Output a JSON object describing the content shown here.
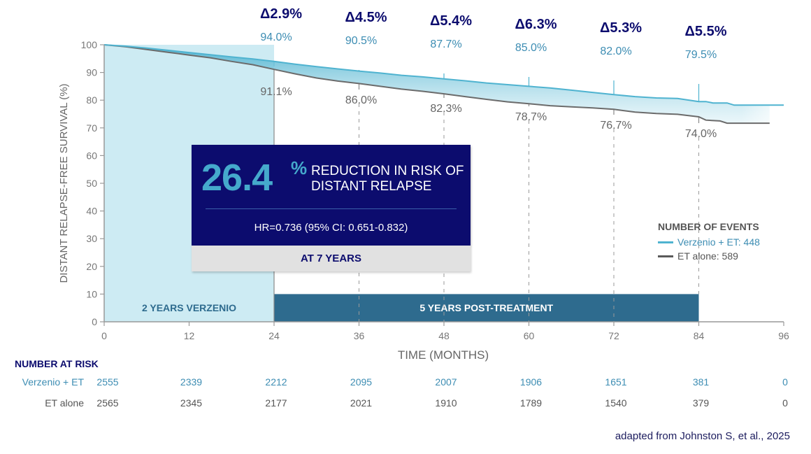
{
  "chart_data": {
    "type": "line",
    "title": "",
    "xlabel": "TIME (MONTHS)",
    "ylabel": "DISTANT RELAPSE-FREE SURVIVAL (%)",
    "xlim": [
      0,
      96
    ],
    "ylim": [
      0,
      100
    ],
    "x_ticks": [
      0,
      12,
      24,
      36,
      48,
      60,
      72,
      84,
      96
    ],
    "y_ticks": [
      0,
      10,
      20,
      30,
      40,
      50,
      60,
      70,
      80,
      90,
      100
    ],
    "grid": false,
    "series": [
      {
        "name": "Verzenio + ET",
        "color": "#4fb3d0",
        "points": [
          [
            0,
            100
          ],
          [
            3,
            99.5
          ],
          [
            6,
            98.8
          ],
          [
            9,
            98.0
          ],
          [
            12,
            97.2
          ],
          [
            15,
            96.4
          ],
          [
            18,
            95.6
          ],
          [
            21,
            94.9
          ],
          [
            24,
            94.0
          ],
          [
            27,
            93.0
          ],
          [
            30,
            92.1
          ],
          [
            33,
            91.3
          ],
          [
            36,
            90.5
          ],
          [
            39,
            89.8
          ],
          [
            42,
            89.0
          ],
          [
            45,
            88.4
          ],
          [
            48,
            87.7
          ],
          [
            51,
            87.0
          ],
          [
            54,
            86.2
          ],
          [
            57,
            85.6
          ],
          [
            60,
            85.0
          ],
          [
            63,
            84.4
          ],
          [
            66,
            83.6
          ],
          [
            69,
            82.8
          ],
          [
            72,
            82.0
          ],
          [
            75,
            81.3
          ],
          [
            78,
            80.8
          ],
          [
            81,
            80.6
          ],
          [
            84,
            79.5
          ],
          [
            85,
            79.5
          ],
          [
            86,
            79.0
          ],
          [
            88,
            79.0
          ],
          [
            89,
            78.2
          ],
          [
            96,
            78.2
          ]
        ]
      },
      {
        "name": "ET alone",
        "color": "#6b6b6b",
        "points": [
          [
            0,
            100
          ],
          [
            3,
            99.3
          ],
          [
            6,
            98.3
          ],
          [
            9,
            97.3
          ],
          [
            12,
            96.3
          ],
          [
            15,
            95.3
          ],
          [
            18,
            94.0
          ],
          [
            21,
            92.8
          ],
          [
            24,
            91.1
          ],
          [
            27,
            89.5
          ],
          [
            30,
            88.0
          ],
          [
            33,
            86.9
          ],
          [
            36,
            86.0
          ],
          [
            39,
            85.0
          ],
          [
            42,
            84.0
          ],
          [
            45,
            83.2
          ],
          [
            48,
            82.3
          ],
          [
            51,
            81.3
          ],
          [
            54,
            80.3
          ],
          [
            57,
            79.4
          ],
          [
            60,
            78.7
          ],
          [
            63,
            78.0
          ],
          [
            66,
            77.6
          ],
          [
            69,
            77.2
          ],
          [
            72,
            76.7
          ],
          [
            75,
            75.7
          ],
          [
            78,
            75.2
          ],
          [
            81,
            74.9
          ],
          [
            84,
            74.0
          ],
          [
            85,
            72.8
          ],
          [
            87,
            72.5
          ],
          [
            88,
            71.7
          ],
          [
            94,
            71.7
          ]
        ]
      }
    ],
    "annotations": [
      {
        "month": 24,
        "delta": "Δ2.9%",
        "verzenio": "94.0%",
        "et": "91.1%"
      },
      {
        "month": 36,
        "delta": "Δ4.5%",
        "verzenio": "90.5%",
        "et": "86.0%"
      },
      {
        "month": 48,
        "delta": "Δ5.4%",
        "verzenio": "87.7%",
        "et": "82.3%"
      },
      {
        "month": 60,
        "delta": "Δ6.3%",
        "verzenio": "85.0%",
        "et": "78.7%"
      },
      {
        "month": 72,
        "delta": "Δ5.3%",
        "verzenio": "82.0%",
        "et": "76.7%"
      },
      {
        "month": 84,
        "delta": "Δ5.5%",
        "verzenio": "79.5%",
        "et": "74.0%"
      }
    ],
    "phases": [
      {
        "label": "2 YEARS VERZENIO",
        "from": 0,
        "to": 24
      },
      {
        "label": "5 YEARS POST-TREATMENT",
        "from": 24,
        "to": 84
      }
    ]
  },
  "stat_box": {
    "value": "26.4",
    "percent": "%",
    "text": "REDUCTION IN RISK OF DISTANT RELAPSE",
    "hr": "HR=0.736 (95% CI: 0.651-0.832)",
    "footer": "AT 7 YEARS"
  },
  "legend": {
    "title": "NUMBER OF EVENTS",
    "items": [
      {
        "label": "Verzenio + ET: 448",
        "color": "#4fb3d0"
      },
      {
        "label": "ET alone: 589",
        "color": "#5a5a5a"
      }
    ]
  },
  "risk_table": {
    "title": "NUMBER AT RISK",
    "rows": [
      {
        "label": "Verzenio + ET",
        "values": [
          "2555",
          "2339",
          "2212",
          "2095",
          "2007",
          "1906",
          "1651",
          "381",
          "0"
        ],
        "color": "#3d8db3"
      },
      {
        "label": "ET alone",
        "values": [
          "2565",
          "2345",
          "2177",
          "2021",
          "1910",
          "1789",
          "1540",
          "379",
          "0"
        ],
        "color": "#555555"
      }
    ]
  },
  "citation": "adapted from Johnston S, et al., 2025",
  "colors": {
    "navy": "#0c0c6e",
    "light_band": "#cdebf3",
    "post_band": "#2e6b8e",
    "verzenio": "#4fb3d0",
    "et": "#6b6b6b"
  }
}
